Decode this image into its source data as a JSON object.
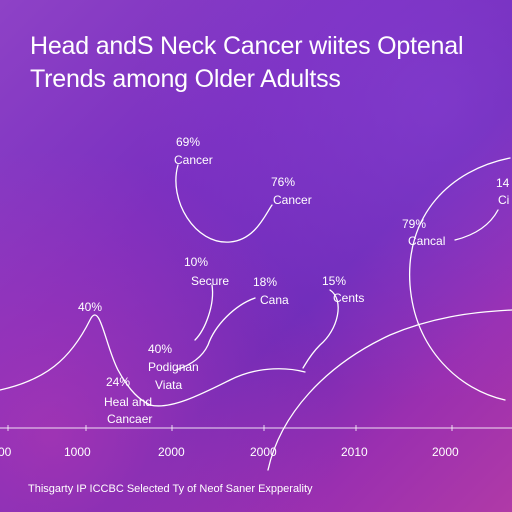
{
  "title_lines": [
    "Head andS Neck Cancer wiites Optenal",
    "Trends among Older Adultss"
  ],
  "caption": "Thisgarty IP ICCBC Selected Ty of Neof Saner Expperality",
  "colors": {
    "background": "#7a2fc0",
    "line": "#ffffff",
    "text": "#ffffff"
  },
  "chart_data": {
    "type": "line",
    "x_ticks": [
      "00",
      "1000",
      "2000",
      "2000",
      "2010",
      "2000"
    ],
    "annotations": [
      {
        "value": "69%",
        "label": "Cancer"
      },
      {
        "value": "76%",
        "label": "Cancer"
      },
      {
        "value": "10%",
        "label": "Secure"
      },
      {
        "value": "18%",
        "label": "Cana"
      },
      {
        "value": "15%",
        "label": "Cents"
      },
      {
        "value": "79%",
        "label": "Cancal"
      },
      {
        "value": "14",
        "label": "Ci"
      },
      {
        "value": "40%",
        "label": ""
      },
      {
        "value": "40%",
        "label": "Podignan"
      },
      {
        "value": "24%",
        "label": "Viata"
      },
      {
        "value": "",
        "label": "Heal and"
      },
      {
        "value": "",
        "label": "Cancaer"
      }
    ]
  }
}
